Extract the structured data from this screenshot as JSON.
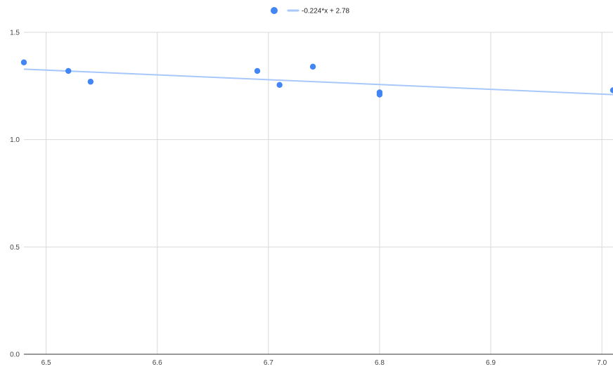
{
  "chart_data": {
    "type": "scatter",
    "series": [
      {
        "name": "",
        "color": "#4285f4",
        "points": [
          {
            "x": 6.48,
            "y": 1.36
          },
          {
            "x": 6.52,
            "y": 1.32
          },
          {
            "x": 6.54,
            "y": 1.27
          },
          {
            "x": 6.69,
            "y": 1.32
          },
          {
            "x": 6.71,
            "y": 1.255
          },
          {
            "x": 6.74,
            "y": 1.34
          },
          {
            "x": 6.8,
            "y": 1.22
          },
          {
            "x": 6.8,
            "y": 1.21
          },
          {
            "x": 7.01,
            "y": 1.23
          }
        ]
      }
    ],
    "trendline": {
      "label": "-0.224*x + 2.78",
      "slope": -0.224,
      "intercept": 2.78,
      "color": "#a8c7fa"
    },
    "xlim": [
      6.48,
      7.01
    ],
    "ylim": [
      0,
      1.5
    ],
    "x_ticks": [
      6.5,
      6.6,
      6.7,
      6.8,
      6.9,
      7.0
    ],
    "x_tick_labels": [
      "6.5",
      "6.6",
      "6.7",
      "6.8",
      "6.9",
      "7.0"
    ],
    "y_ticks": [
      0,
      0.5,
      1.0,
      1.5
    ],
    "y_tick_labels": [
      "0.0",
      "0.5",
      "1.0",
      "1.5"
    ],
    "grid": true,
    "legend": "top-center"
  }
}
